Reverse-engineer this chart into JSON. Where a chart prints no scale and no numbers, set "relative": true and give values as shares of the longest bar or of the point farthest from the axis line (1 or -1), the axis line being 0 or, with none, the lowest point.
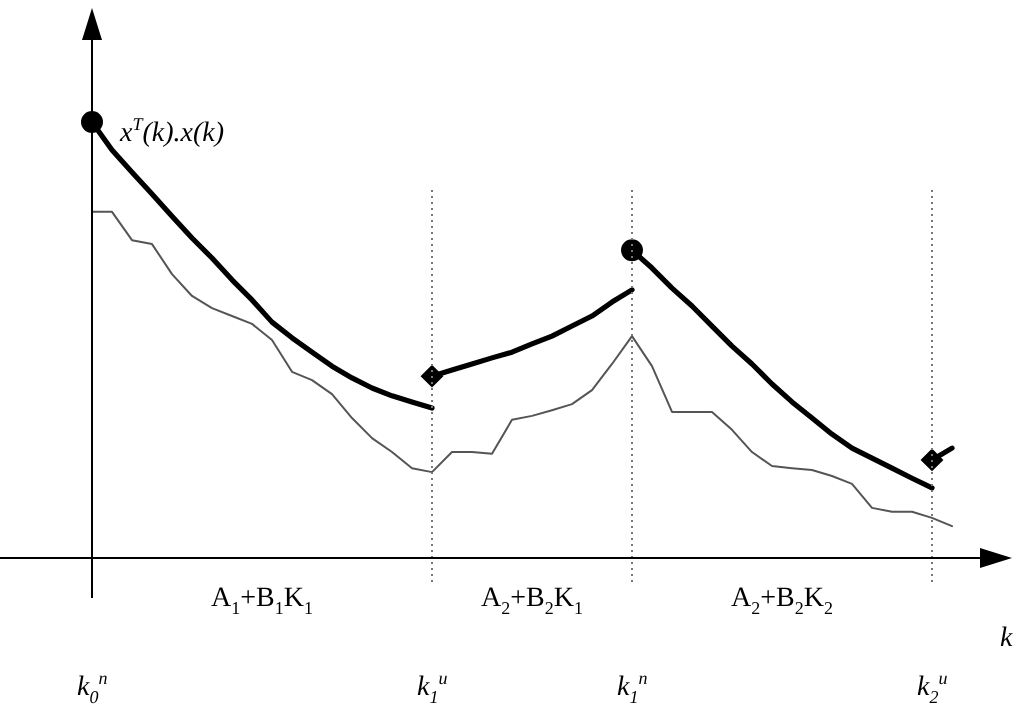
{
  "chart_data": {
    "type": "line",
    "relative": true,
    "ylabel": "x$^{T}$(k).x(k)",
    "xlabel": "k",
    "categories": [
      "k$_{0}$$^{n}$",
      null,
      null,
      null,
      null,
      null,
      null,
      null,
      null,
      null,
      null,
      null,
      null,
      null,
      null,
      null,
      null,
      "k$_{1}$$^{u}$",
      null,
      null,
      null,
      null,
      null,
      null,
      null,
      null,
      null,
      "k$_{1}$$^{n}$",
      null,
      null,
      null,
      null,
      null,
      null,
      null,
      null,
      null,
      null,
      null,
      null,
      null,
      null,
      "k$_{2}$$^{u}$",
      null
    ],
    "series": [
      {
        "color": "#000000",
        "values": [
          1.0,
          0.936,
          0.885,
          0.835,
          0.784,
          0.734,
          0.688,
          0.638,
          0.592,
          0.541,
          0.505,
          0.472,
          0.44,
          0.413,
          0.39,
          0.372,
          0.358,
          0.344,
          null,
          null,
          null,
          null,
          null,
          null,
          null,
          null,
          null,
          null,
          null,
          null,
          null,
          null,
          null,
          null,
          null,
          null,
          null,
          null,
          null,
          null,
          null,
          null,
          null,
          null
        ]
      },
      {
        "color": "#000000",
        "values": [
          null,
          null,
          null,
          null,
          null,
          null,
          null,
          null,
          null,
          null,
          null,
          null,
          null,
          null,
          null,
          null,
          null,
          0.417,
          0.431,
          0.445,
          0.459,
          0.472,
          0.491,
          0.509,
          0.532,
          0.555,
          0.587,
          0.615,
          null,
          null,
          null,
          null,
          null,
          null,
          null,
          null,
          null,
          null,
          null,
          null,
          null,
          null,
          null,
          null
        ]
      },
      {
        "color": "#000000",
        "values": [
          null,
          null,
          null,
          null,
          null,
          null,
          null,
          null,
          null,
          null,
          null,
          null,
          null,
          null,
          null,
          null,
          null,
          null,
          null,
          null,
          null,
          null,
          null,
          null,
          null,
          null,
          null,
          0.706,
          0.665,
          0.619,
          0.578,
          0.532,
          0.486,
          0.445,
          0.399,
          0.358,
          0.321,
          0.284,
          0.252,
          0.229,
          0.206,
          0.183,
          0.161,
          null
        ]
      },
      {
        "color": "#000000",
        "values": [
          null,
          null,
          null,
          null,
          null,
          null,
          null,
          null,
          null,
          null,
          null,
          null,
          null,
          null,
          null,
          null,
          null,
          null,
          null,
          null,
          null,
          null,
          null,
          null,
          null,
          null,
          null,
          null,
          null,
          null,
          null,
          null,
          null,
          null,
          null,
          null,
          null,
          null,
          null,
          null,
          null,
          null,
          0.225,
          0.252
        ]
      },
      {
        "color": "#555555",
        "values": [
          0.794,
          0.794,
          0.729,
          0.72,
          0.651,
          0.601,
          0.573,
          0.555,
          0.537,
          0.5,
          0.427,
          0.408,
          0.376,
          0.321,
          0.275,
          0.243,
          0.206,
          0.197,
          0.243,
          0.243,
          0.239,
          0.317,
          0.326,
          0.339,
          0.353,
          0.385,
          0.445,
          0.509,
          0.44,
          0.335,
          0.335,
          0.335,
          0.294,
          0.243,
          0.211,
          0.206,
          0.202,
          0.188,
          0.17,
          0.115,
          0.106,
          0.106,
          0.092,
          0.073
        ]
      },
      {
        "type": "scatter",
        "color": "#000000",
        "marker": "circle",
        "values": [
          1.0,
          null,
          null,
          null,
          null,
          null,
          null,
          null,
          null,
          null,
          null,
          null,
          null,
          null,
          null,
          null,
          null,
          null,
          null,
          null,
          null,
          null,
          null,
          null,
          null,
          null,
          null,
          0.706,
          null,
          null,
          null,
          null,
          null,
          null,
          null,
          null,
          null,
          null,
          null,
          null,
          null,
          null,
          null,
          null
        ]
      },
      {
        "type": "scatter",
        "color": "#000000",
        "marker": "diamond",
        "values": [
          null,
          null,
          null,
          null,
          null,
          null,
          null,
          null,
          null,
          null,
          null,
          null,
          null,
          null,
          null,
          null,
          null,
          0.417,
          null,
          null,
          null,
          null,
          null,
          null,
          null,
          null,
          null,
          null,
          null,
          null,
          null,
          null,
          null,
          null,
          null,
          null,
          null,
          null,
          null,
          null,
          null,
          null,
          0.225,
          null
        ]
      }
    ],
    "ref_lines": [
      {
        "axis": "x",
        "value": "k$_{1}$$^{u}$",
        "line_style": "dotted"
      },
      {
        "axis": "x",
        "value": "k$_{1}$$^{n}$",
        "line_style": "dotted"
      },
      {
        "axis": "x",
        "value": "k$_{2}$$^{u}$",
        "line_style": "dotted"
      }
    ],
    "annotations": [
      "A$_{1}$+B$_{1}$K$_{1}$",
      "A$_{2}$+B$_{2}$K$_{1}$",
      "A$_{2}$+B$_{2}$K$_{2}$"
    ],
    "legend": false
  }
}
